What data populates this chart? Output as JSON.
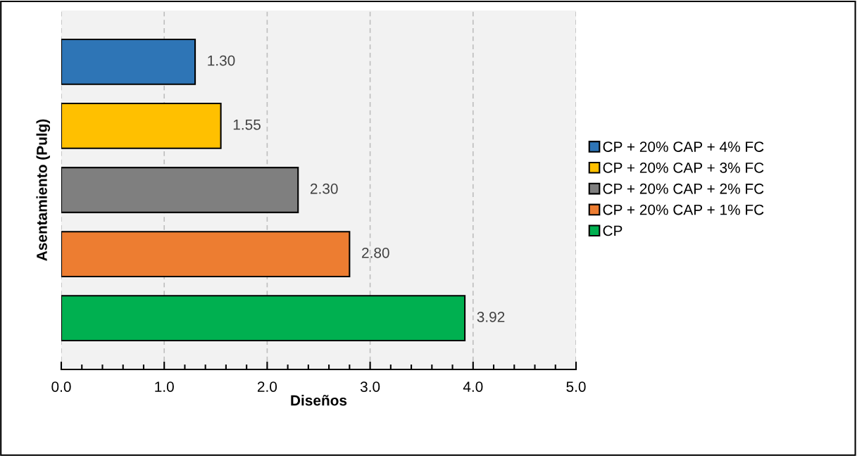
{
  "chart_data": {
    "type": "bar",
    "orientation": "horizontal",
    "xlabel": "Diseños",
    "ylabel": "Asentamiento (Pulg)",
    "categories": [
      null,
      null,
      null,
      null,
      null
    ],
    "series": [
      {
        "name": "CP + 20% CAP + 4% FC",
        "color": "#2e75b6",
        "values": [
          1.3,
          null,
          null,
          null,
          null
        ],
        "value_labels": [
          "1.30",
          null,
          null,
          null,
          null
        ]
      },
      {
        "name": "CP + 20% CAP + 3% FC",
        "color": "#ffc000",
        "values": [
          null,
          1.55,
          null,
          null,
          null
        ],
        "value_labels": [
          null,
          "1.55",
          null,
          null,
          null
        ]
      },
      {
        "name": "CP + 20% CAP + 2% FC",
        "color": "#7f7f7f",
        "values": [
          null,
          null,
          2.3,
          null,
          null
        ],
        "value_labels": [
          null,
          null,
          "2.30",
          null,
          null
        ]
      },
      {
        "name": "CP + 20% CAP + 1% FC",
        "color": "#ed7d31",
        "values": [
          null,
          null,
          null,
          2.8,
          null
        ],
        "value_labels": [
          null,
          null,
          null,
          "2.80",
          null
        ]
      },
      {
        "name": "CP",
        "color": "#00b050",
        "values": [
          null,
          null,
          null,
          null,
          3.92
        ],
        "value_labels": [
          null,
          null,
          null,
          null,
          "3.92"
        ]
      }
    ],
    "xlim": [
      0,
      5
    ],
    "xticks": [
      {
        "value": 0,
        "label": "0.0"
      },
      {
        "value": 1,
        "label": "1.0"
      },
      {
        "value": 2,
        "label": "2.0"
      },
      {
        "value": 3,
        "label": "3.0"
      },
      {
        "value": 4,
        "label": "4.0"
      },
      {
        "value": 5,
        "label": "5.0"
      }
    ],
    "grid": "x",
    "legend": "right"
  }
}
